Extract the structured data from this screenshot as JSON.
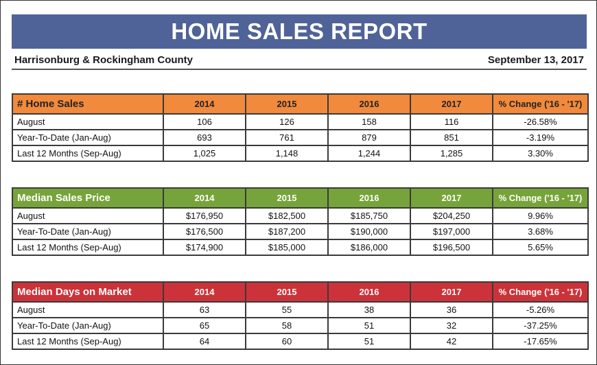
{
  "header": {
    "title": "HOME SALES REPORT",
    "location": "Harrisonburg & Rockingham County",
    "date": "September 13, 2017"
  },
  "colors": {
    "banner": "#4f6398",
    "home_sales": "#f18a3c",
    "median_price": "#76a43a",
    "median_days": "#cc3239"
  },
  "tables": [
    {
      "title": "# Home Sales",
      "columns": [
        "2014",
        "2015",
        "2016",
        "2017",
        "% Change ('16 - '17)"
      ],
      "rows": [
        {
          "label": "August",
          "values": [
            "106",
            "126",
            "158",
            "116",
            "-26.58%"
          ]
        },
        {
          "label": "Year-To-Date (Jan-Aug)",
          "values": [
            "693",
            "761",
            "879",
            "851",
            "-3.19%"
          ]
        },
        {
          "label": "Last 12 Months (Sep-Aug)",
          "values": [
            "1,025",
            "1,148",
            "1,244",
            "1,285",
            "3.30%"
          ]
        }
      ]
    },
    {
      "title": "Median Sales Price",
      "columns": [
        "2014",
        "2015",
        "2016",
        "2017",
        "% Change ('16 - '17)"
      ],
      "rows": [
        {
          "label": "August",
          "values": [
            "$176,950",
            "$182,500",
            "$185,750",
            "$204,250",
            "9.96%"
          ]
        },
        {
          "label": "Year-To-Date (Jan-Aug)",
          "values": [
            "$176,500",
            "$187,200",
            "$190,000",
            "$197,000",
            "3.68%"
          ]
        },
        {
          "label": "Last 12 Months (Sep-Aug)",
          "values": [
            "$174,900",
            "$185,000",
            "$186,000",
            "$196,500",
            "5.65%"
          ]
        }
      ]
    },
    {
      "title": "Median Days on Market",
      "columns": [
        "2014",
        "2015",
        "2016",
        "2017",
        "% Change ('16 - '17)"
      ],
      "rows": [
        {
          "label": "August",
          "values": [
            "63",
            "55",
            "38",
            "36",
            "-5.26%"
          ]
        },
        {
          "label": "Year-To-Date (Jan-Aug)",
          "values": [
            "65",
            "58",
            "51",
            "32",
            "-37.25%"
          ]
        },
        {
          "label": "Last 12 Months (Sep-Aug)",
          "values": [
            "64",
            "60",
            "51",
            "42",
            "-17.65%"
          ]
        }
      ]
    }
  ]
}
